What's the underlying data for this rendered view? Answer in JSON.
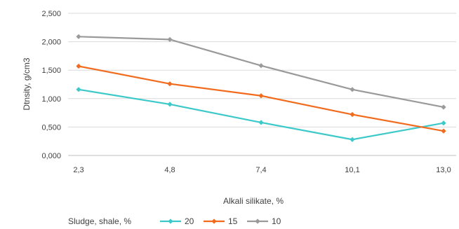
{
  "chart_data": {
    "type": "line",
    "categories": [
      "2,3",
      "4,8",
      "7,4",
      "10,1",
      "13,0"
    ],
    "x_values": [
      2.3,
      4.8,
      7.4,
      10.1,
      13.0
    ],
    "xlabel": "Alkali silikate, %",
    "ylabel": "Dtnsity, g/cm3",
    "ylim": [
      0,
      2.5
    ],
    "yticks": [
      0,
      0.5,
      1.0,
      1.5,
      2.0,
      2.5
    ],
    "ytick_labels": [
      "0,000",
      "0,500",
      "1,000",
      "1,500",
      "2,000",
      "2,500"
    ],
    "grid": "horizontal",
    "legend_title": "Sludge, shale, %",
    "legend_position": "bottom",
    "series": [
      {
        "name": "20",
        "color": "#3dc9c9",
        "values": [
          1.16,
          0.9,
          0.58,
          0.28,
          0.57
        ]
      },
      {
        "name": "15",
        "color": "#f26b1d",
        "values": [
          1.57,
          1.26,
          1.05,
          0.72,
          0.43
        ]
      },
      {
        "name": "10",
        "color": "#9a9a9a",
        "values": [
          2.09,
          2.04,
          1.58,
          1.16,
          0.85
        ]
      }
    ]
  }
}
